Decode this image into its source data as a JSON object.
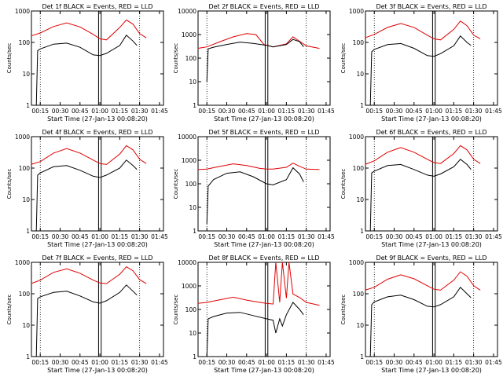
{
  "colors": {
    "events": "#000000",
    "lld": "#e00000",
    "axis": "#000000"
  },
  "chart_data": [
    {
      "type": "line",
      "title": "Det 1f BLACK = Events, RED = LLD",
      "xlabel": "Start Time (27-Jan-13 00:08:20)",
      "ylabel": "Counts/sec",
      "yscale": "log",
      "ylim": [
        1,
        1000
      ],
      "y_ticks": [
        "1",
        "10",
        "100",
        "1000"
      ],
      "x_ticks": [
        "00:15",
        "00:30",
        "00:45",
        "01:00",
        "01:15",
        "01:30",
        "01:45"
      ],
      "series": [
        {
          "color": "#e00000",
          "x": [
            "00:08",
            "00:15",
            "00:25",
            "00:35",
            "00:45",
            "00:55",
            "01:00",
            "01:05",
            "01:15",
            "01:20",
            "01:25",
            "01:30",
            "01:35"
          ],
          "values": [
            160,
            200,
            320,
            420,
            310,
            180,
            130,
            120,
            300,
            520,
            380,
            190,
            140
          ]
        },
        {
          "color": "#000000",
          "x": [
            "00:12",
            "00:13",
            "00:15",
            "00:25",
            "00:35",
            "00:45",
            "00:55",
            "01:00",
            "01:05",
            "01:15",
            "01:20",
            "01:25",
            "01:28"
          ],
          "values": [
            1,
            55,
            62,
            88,
            95,
            70,
            40,
            38,
            45,
            80,
            170,
            110,
            80
          ]
        }
      ]
    },
    {
      "type": "line",
      "title": "Det 2f BLACK = Events, RED = LLD",
      "xlabel": "Start Time (27-Jan-13 00:08:20)",
      "ylabel": "Counts/sec",
      "yscale": "log",
      "ylim": [
        1,
        10000
      ],
      "y_ticks": [
        "1",
        "10",
        "100",
        "1000",
        "10000"
      ],
      "x_ticks": [
        "00:15",
        "00:30",
        "00:45",
        "01:00",
        "01:15",
        "01:30",
        "01:45"
      ],
      "series": [
        {
          "color": "#e00000",
          "x": [
            "00:08",
            "00:15",
            "00:25",
            "00:35",
            "00:45",
            "00:52",
            "00:58",
            "01:05",
            "01:15",
            "01:20",
            "01:25",
            "01:30",
            "01:40"
          ],
          "values": [
            260,
            300,
            500,
            800,
            1100,
            1000,
            380,
            300,
            400,
            800,
            520,
            330,
            260
          ]
        },
        {
          "color": "#000000",
          "x": [
            "00:15",
            "00:16",
            "00:20",
            "00:30",
            "00:40",
            "00:50",
            "01:00",
            "01:05",
            "01:15",
            "01:20",
            "01:25",
            "01:28"
          ],
          "values": [
            10,
            250,
            290,
            380,
            480,
            420,
            350,
            300,
            380,
            620,
            500,
            300
          ]
        }
      ]
    },
    {
      "type": "line",
      "title": "Det 3f BLACK = Events, RED = LLD",
      "xlabel": "Start Time (27-Jan-13 00:08:20)",
      "ylabel": "Counts/sec",
      "yscale": "log",
      "ylim": [
        1,
        1000
      ],
      "y_ticks": [
        "1",
        "10",
        "100",
        "1000"
      ],
      "x_ticks": [
        "00:15",
        "00:30",
        "00:45",
        "01:00",
        "01:15",
        "01:30",
        "01:45"
      ],
      "series": [
        {
          "color": "#e00000",
          "x": [
            "00:08",
            "00:15",
            "00:25",
            "00:35",
            "00:45",
            "00:55",
            "01:00",
            "01:05",
            "01:15",
            "01:20",
            "01:25",
            "01:30",
            "01:35"
          ],
          "values": [
            140,
            180,
            300,
            400,
            300,
            170,
            130,
            120,
            260,
            480,
            340,
            170,
            130
          ]
        },
        {
          "color": "#000000",
          "x": [
            "00:12",
            "00:13",
            "00:15",
            "00:25",
            "00:35",
            "00:45",
            "00:55",
            "01:00",
            "01:05",
            "01:15",
            "01:20",
            "01:25",
            "01:28"
          ],
          "values": [
            1,
            50,
            60,
            85,
            92,
            65,
            38,
            36,
            44,
            78,
            160,
            100,
            80
          ]
        }
      ]
    },
    {
      "type": "line",
      "title": "Det 4f BLACK = Events, RED = LLD",
      "xlabel": "Start Time (27-Jan-13 00:08:20)",
      "ylabel": "Counts/sec",
      "yscale": "log",
      "ylim": [
        1,
        1000
      ],
      "y_ticks": [
        "1",
        "10",
        "100",
        "1000"
      ],
      "x_ticks": [
        "00:15",
        "00:30",
        "00:45",
        "01:00",
        "01:15",
        "01:30",
        "01:45"
      ],
      "series": [
        {
          "color": "#e00000",
          "x": [
            "00:08",
            "00:15",
            "00:25",
            "00:35",
            "00:45",
            "00:55",
            "01:00",
            "01:05",
            "01:15",
            "01:20",
            "01:25",
            "01:30",
            "01:35"
          ],
          "values": [
            130,
            160,
            300,
            420,
            300,
            180,
            140,
            130,
            280,
            520,
            380,
            190,
            140
          ]
        },
        {
          "color": "#000000",
          "x": [
            "00:12",
            "00:13",
            "00:15",
            "00:25",
            "00:35",
            "00:45",
            "00:55",
            "01:00",
            "01:05",
            "01:15",
            "01:20",
            "01:25",
            "01:28"
          ],
          "values": [
            1,
            60,
            70,
            110,
            120,
            85,
            55,
            50,
            60,
            100,
            180,
            120,
            90
          ]
        }
      ]
    },
    {
      "type": "line",
      "title": "Det 5f BLACK = Events, RED = LLD",
      "xlabel": "Start Time (27-Jan-13 00:08:20)",
      "ylabel": "Counts/sec",
      "yscale": "log",
      "ylim": [
        1,
        10000
      ],
      "y_ticks": [
        "1",
        "10",
        "100",
        "1000",
        "10000"
      ],
      "x_ticks": [
        "00:15",
        "00:30",
        "00:45",
        "01:00",
        "01:15",
        "01:30",
        "01:45"
      ],
      "series": [
        {
          "color": "#e00000",
          "x": [
            "00:08",
            "00:15",
            "00:25",
            "00:35",
            "00:45",
            "00:55",
            "01:00",
            "01:05",
            "01:15",
            "01:20",
            "01:25",
            "01:30",
            "01:40"
          ],
          "values": [
            400,
            420,
            550,
            700,
            600,
            450,
            420,
            420,
            500,
            750,
            550,
            420,
            400
          ]
        },
        {
          "color": "#000000",
          "x": [
            "00:15",
            "00:16",
            "00:20",
            "00:30",
            "00:40",
            "00:50",
            "01:00",
            "01:05",
            "01:15",
            "01:20",
            "01:25",
            "01:28"
          ],
          "values": [
            2,
            80,
            150,
            280,
            320,
            200,
            100,
            90,
            150,
            480,
            260,
            120
          ]
        }
      ]
    },
    {
      "type": "line",
      "title": "Det 6f BLACK = Events, RED = LLD",
      "xlabel": "Start Time (27-Jan-13 00:08:20)",
      "ylabel": "Counts/sec",
      "yscale": "log",
      "ylim": [
        1,
        1000
      ],
      "y_ticks": [
        "1",
        "10",
        "100",
        "1000"
      ],
      "x_ticks": [
        "00:15",
        "00:30",
        "00:45",
        "01:00",
        "01:15",
        "01:30",
        "01:45"
      ],
      "series": [
        {
          "color": "#e00000",
          "x": [
            "00:08",
            "00:15",
            "00:25",
            "00:35",
            "00:45",
            "00:55",
            "01:00",
            "01:05",
            "01:15",
            "01:20",
            "01:25",
            "01:30",
            "01:35"
          ],
          "values": [
            130,
            170,
            320,
            450,
            320,
            190,
            150,
            140,
            290,
            520,
            380,
            190,
            140
          ]
        },
        {
          "color": "#000000",
          "x": [
            "00:12",
            "00:13",
            "00:15",
            "00:25",
            "00:35",
            "00:45",
            "00:55",
            "01:00",
            "01:05",
            "01:15",
            "01:20",
            "01:25",
            "01:28"
          ],
          "values": [
            1,
            70,
            80,
            120,
            130,
            90,
            60,
            55,
            65,
            110,
            190,
            130,
            90
          ]
        }
      ]
    },
    {
      "type": "line",
      "title": "Det 7f BLACK = Events, RED = LLD",
      "xlabel": "Start Time (27-Jan-13 00:08:20)",
      "ylabel": "Counts/sec",
      "yscale": "log",
      "ylim": [
        1,
        1000
      ],
      "y_ticks": [
        "1",
        "10",
        "100",
        "1000"
      ],
      "x_ticks": [
        "00:15",
        "00:30",
        "00:45",
        "01:00",
        "01:15",
        "01:30",
        "01:45"
      ],
      "series": [
        {
          "color": "#e00000",
          "x": [
            "00:08",
            "00:15",
            "00:25",
            "00:35",
            "00:45",
            "00:55",
            "01:00",
            "01:05",
            "01:15",
            "01:20",
            "01:25",
            "01:30",
            "01:35"
          ],
          "values": [
            210,
            270,
            480,
            620,
            450,
            270,
            220,
            210,
            420,
            720,
            540,
            280,
            210
          ]
        },
        {
          "color": "#000000",
          "x": [
            "00:12",
            "00:13",
            "00:15",
            "00:25",
            "00:35",
            "00:45",
            "00:55",
            "01:00",
            "01:05",
            "01:15",
            "01:20",
            "01:25",
            "01:28"
          ],
          "values": [
            1,
            70,
            80,
            110,
            120,
            85,
            55,
            50,
            60,
            110,
            190,
            120,
            90
          ]
        }
      ]
    },
    {
      "type": "line",
      "title": "Det 8f BLACK = Events, RED = LLD",
      "xlabel": "Start Time (27-Jan-13 00:08:20)",
      "ylabel": "Counts/sec",
      "yscale": "log",
      "ylim": [
        1,
        10000
      ],
      "y_ticks": [
        "1",
        "10",
        "100",
        "1000",
        "10000"
      ],
      "x_ticks": [
        "00:15",
        "00:30",
        "00:45",
        "01:00",
        "01:15",
        "01:30",
        "01:45"
      ],
      "series": [
        {
          "color": "#e00000",
          "x": [
            "00:08",
            "00:15",
            "00:25",
            "00:35",
            "00:45",
            "00:55",
            "01:00",
            "01:05",
            "01:07",
            "01:10",
            "01:12",
            "01:15",
            "01:17",
            "01:20",
            "01:25",
            "01:30",
            "01:40"
          ],
          "values": [
            180,
            200,
            260,
            330,
            250,
            200,
            180,
            170,
            10000,
            200,
            10000,
            300,
            10000,
            450,
            320,
            200,
            150
          ]
        },
        {
          "color": "#000000",
          "x": [
            "00:15",
            "00:16",
            "00:20",
            "00:30",
            "00:40",
            "00:50",
            "01:00",
            "01:05",
            "01:07",
            "01:10",
            "01:12",
            "01:15",
            "01:20",
            "01:25",
            "01:28"
          ],
          "values": [
            1,
            40,
            50,
            70,
            75,
            55,
            40,
            35,
            10,
            40,
            20,
            60,
            200,
            100,
            60
          ]
        }
      ]
    },
    {
      "type": "line",
      "title": "Det 9f BLACK = Events, RED = LLD",
      "xlabel": "Start Time (27-Jan-13 00:08:20)",
      "ylabel": "Counts/sec",
      "yscale": "log",
      "ylim": [
        1,
        1000
      ],
      "y_ticks": [
        "1",
        "10",
        "100",
        "1000"
      ],
      "x_ticks": [
        "00:15",
        "00:30",
        "00:45",
        "01:00",
        "01:15",
        "01:30",
        "01:45"
      ],
      "series": [
        {
          "color": "#e00000",
          "x": [
            "00:08",
            "00:15",
            "00:25",
            "00:35",
            "00:45",
            "00:55",
            "01:00",
            "01:05",
            "01:15",
            "01:20",
            "01:25",
            "01:30",
            "01:35"
          ],
          "values": [
            130,
            160,
            290,
            400,
            300,
            180,
            140,
            130,
            270,
            500,
            360,
            180,
            130
          ]
        },
        {
          "color": "#000000",
          "x": [
            "00:12",
            "00:13",
            "00:15",
            "00:25",
            "00:35",
            "00:45",
            "00:55",
            "01:00",
            "01:05",
            "01:15",
            "01:20",
            "01:25",
            "01:28"
          ],
          "values": [
            1,
            45,
            55,
            80,
            90,
            65,
            40,
            38,
            45,
            80,
            160,
            100,
            75
          ]
        }
      ]
    }
  ]
}
